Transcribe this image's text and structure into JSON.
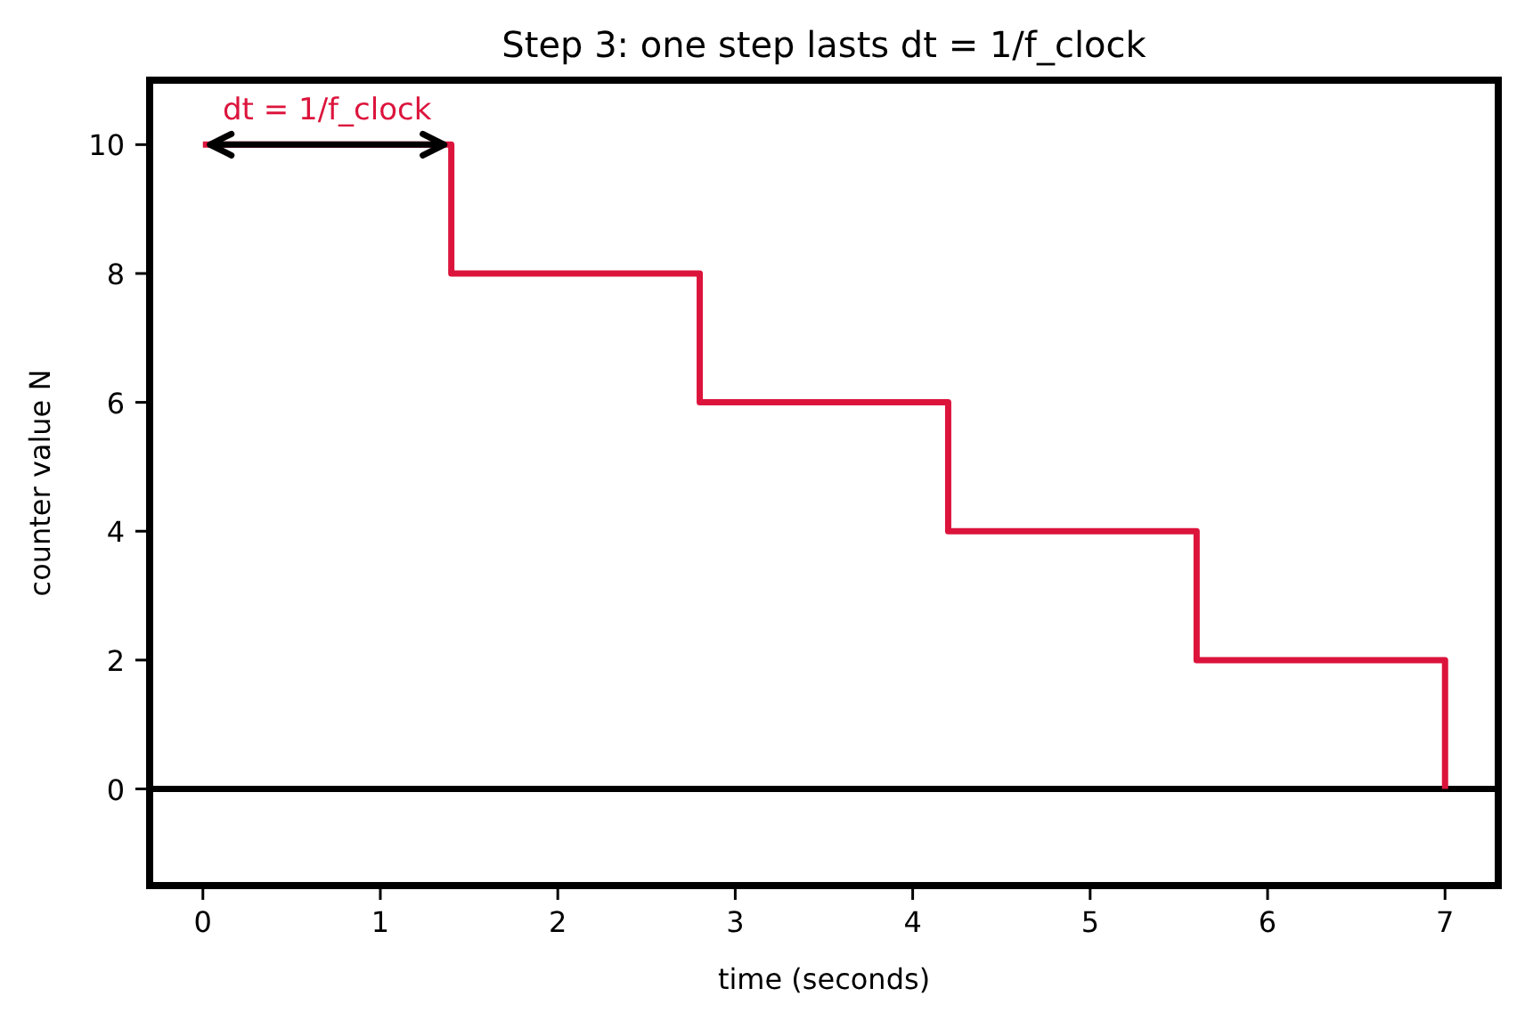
{
  "chart_data": {
    "type": "step",
    "title": "Step 3: one step lasts dt = 1/f_clock",
    "xlabel": "time (seconds)",
    "ylabel": "counter value N",
    "x": [
      0,
      1.4,
      2.8,
      4.2,
      5.6,
      7
    ],
    "series": [
      {
        "color": "#dc143c",
        "values": [
          10,
          8,
          6,
          4,
          2,
          0
        ]
      }
    ],
    "xlim": [
      -0.3,
      7.3
    ],
    "ylim": [
      -1.5,
      11
    ],
    "xticks": [
      0,
      1,
      2,
      3,
      4,
      5,
      6,
      7
    ],
    "yticks": [
      0,
      2,
      4,
      6,
      8,
      10
    ],
    "ref_lines": [
      {
        "axis": "y",
        "value": 0,
        "color": "#000000"
      }
    ],
    "annotations": [
      "dt = 1/f_clock"
    ],
    "grid": false,
    "marker": "none",
    "line_style": "solid"
  }
}
